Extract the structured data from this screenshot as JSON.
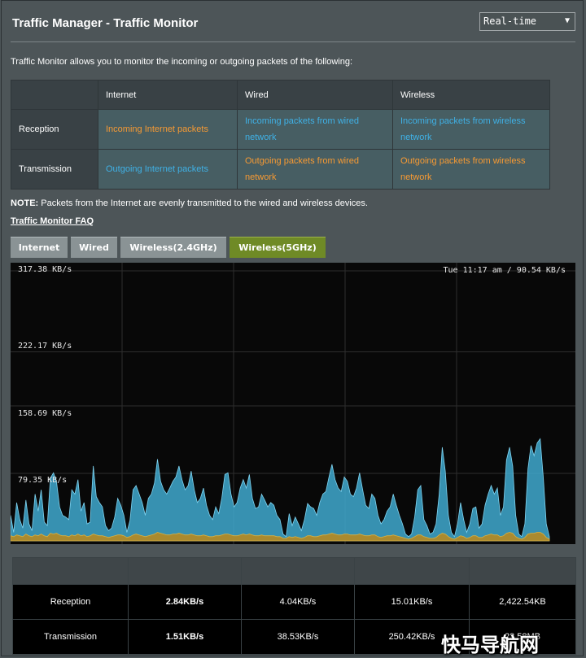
{
  "header": {
    "title": "Traffic Manager - Traffic Monitor",
    "mode_select": "Real-time"
  },
  "intro": "Traffic Monitor allows you to monitor the incoming or outgoing packets of the following:",
  "packet_table": {
    "columns": [
      "Internet",
      "Wired",
      "Wireless"
    ],
    "rows": [
      {
        "label": "Reception",
        "cells": [
          "Incoming Internet packets",
          "Incoming packets from wired network",
          "Incoming packets from wireless network"
        ]
      },
      {
        "label": "Transmission",
        "cells": [
          "Outgoing Internet packets",
          "Outgoing packets from wired network",
          "Outgoing packets from wireless network"
        ]
      }
    ]
  },
  "note": {
    "label": "NOTE:",
    "text": " Packets from the Internet are evenly transmitted to the wired and wireless devices."
  },
  "faq_link": "Traffic Monitor FAQ",
  "tabs": [
    {
      "label": "Internet",
      "active": false
    },
    {
      "label": "Wired",
      "active": false
    },
    {
      "label": "Wireless(2.4GHz)",
      "active": false
    },
    {
      "label": "Wireless(5GHz)",
      "active": true
    }
  ],
  "chart": {
    "y_labels": [
      "317.38 KB/s",
      "222.17 KB/s",
      "158.69 KB/s",
      "79.35 KB/s"
    ],
    "timestamp": "Tue 11:17 am / 90.54 KB/s",
    "colors": {
      "reception": "#3fa9cf",
      "transmission": "#b08a28",
      "background": "#080808"
    }
  },
  "chart_data": {
    "type": "area",
    "y_ticks": [
      317.38,
      222.17,
      158.69,
      79.35
    ],
    "ylim": [
      0,
      317.38
    ],
    "y_unit": "KB/s",
    "series": [
      {
        "values": [
          30,
          10,
          45,
          25,
          15,
          48,
          20,
          12,
          55,
          35,
          60,
          22,
          18,
          74,
          80,
          70,
          40,
          30,
          28,
          25,
          60,
          55,
          72,
          35,
          45,
          20,
          22,
          88,
          52,
          45,
          40,
          18,
          12,
          15,
          28,
          50,
          42,
          30,
          10,
          24,
          60,
          65,
          55,
          45,
          30,
          50,
          55,
          68,
          96,
          70,
          60,
          55,
          62,
          70,
          75,
          88,
          72,
          60,
          65,
          82,
          60,
          45,
          50,
          62,
          42,
          30,
          25,
          40,
          32,
          50,
          78,
          80,
          55,
          40,
          45,
          62,
          72,
          62,
          78,
          50,
          38,
          40,
          55,
          48,
          40,
          45,
          42,
          30,
          25,
          8,
          5,
          32,
          18,
          28,
          20,
          12,
          25,
          44,
          40,
          38,
          30,
          45,
          55,
          58,
          75,
          90,
          72,
          62,
          58,
          75,
          70,
          55,
          52,
          62,
          80,
          60,
          42,
          38,
          55,
          50,
          30,
          20,
          25,
          35,
          40,
          55,
          42,
          30,
          20,
          8,
          5,
          8,
          28,
          60,
          65,
          25,
          18,
          8,
          10,
          20,
          55,
          110,
          82,
          30,
          10,
          5,
          20,
          45,
          25,
          10,
          20,
          38,
          40,
          15,
          20,
          42,
          55,
          65,
          55,
          62,
          30,
          40,
          95,
          110,
          88,
          30,
          8,
          5,
          20,
          85,
          112,
          100,
          115,
          120,
          75,
          20,
          5
        ]
      },
      {
        "values": [
          6,
          5,
          7,
          6,
          5,
          8,
          6,
          5,
          7,
          6,
          8,
          6,
          5,
          9,
          8,
          9,
          7,
          6,
          6,
          5,
          7,
          6,
          8,
          6,
          7,
          5,
          6,
          8,
          7,
          6,
          6,
          5,
          4,
          5,
          6,
          7,
          7,
          6,
          4,
          5,
          7,
          8,
          7,
          6,
          5,
          6,
          7,
          8,
          10,
          9,
          8,
          7,
          7,
          8,
          8,
          9,
          8,
          7,
          7,
          8,
          7,
          6,
          6,
          7,
          6,
          5,
          5,
          6,
          6,
          7,
          8,
          8,
          7,
          6,
          6,
          7,
          8,
          7,
          8,
          7,
          6,
          6,
          7,
          6,
          6,
          6,
          6,
          5,
          5,
          3,
          3,
          5,
          4,
          5,
          4,
          3,
          4,
          6,
          6,
          5,
          5,
          6,
          7,
          7,
          8,
          9,
          8,
          7,
          7,
          8,
          8,
          7,
          7,
          7,
          8,
          7,
          6,
          6,
          7,
          7,
          5,
          4,
          5,
          6,
          6,
          7,
          6,
          5,
          4,
          3,
          2,
          3,
          5,
          7,
          7,
          5,
          4,
          3,
          3,
          4,
          7,
          9,
          8,
          5,
          3,
          2,
          4,
          6,
          5,
          3,
          4,
          6,
          6,
          4,
          4,
          6,
          7,
          8,
          7,
          7,
          5,
          6,
          9,
          10,
          9,
          5,
          3,
          2,
          4,
          8,
          9,
          9,
          10,
          10,
          8,
          4,
          2
        ]
      }
    ]
  },
  "stats": {
    "header_cells": [
      "",
      "",
      "",
      "",
      ""
    ],
    "rows": [
      {
        "label": "Reception",
        "values": [
          "2.84KB/s",
          "4.04KB/s",
          "15.01KB/s",
          "2,422.54KB"
        ]
      },
      {
        "label": "Transmission",
        "values": [
          "1.51KB/s",
          "38.53KB/s",
          "250.42KB/s",
          "22.58MB"
        ]
      }
    ]
  },
  "watermark": "快马导航网"
}
